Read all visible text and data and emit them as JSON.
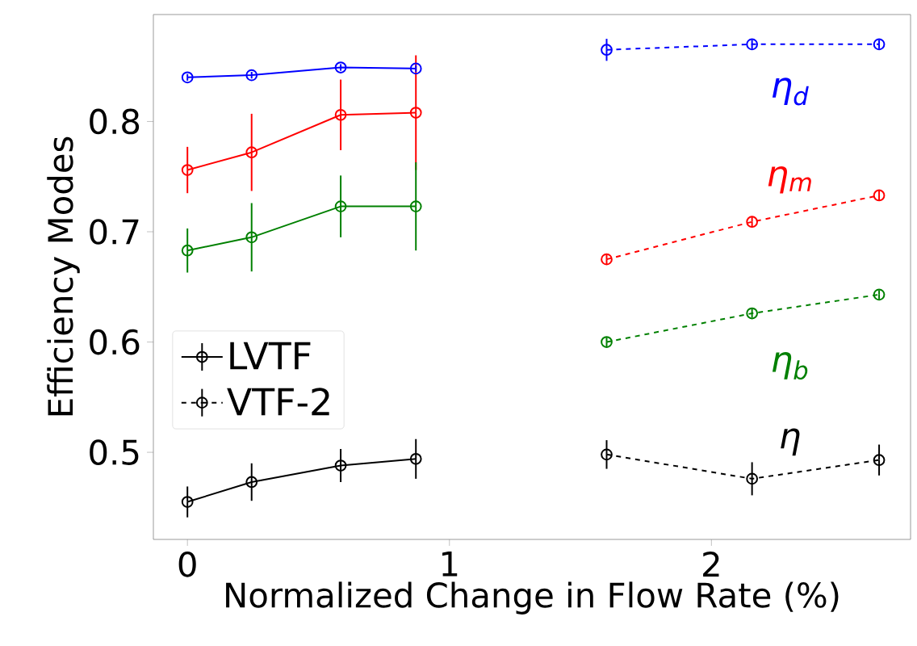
{
  "chart_data": {
    "type": "line",
    "xlabel": "Normalized Change in Flow Rate (%)",
    "ylabel": "Efficiency Modes",
    "xlim": [
      -0.13,
      2.76
    ],
    "ylim": [
      0.421,
      0.897
    ],
    "xticks": [
      0,
      1,
      2
    ],
    "yticks": [
      0.5,
      0.6,
      0.7,
      0.8
    ],
    "marker": "circle",
    "legend": "left",
    "grid": false,
    "series": [
      {
        "name": "LVTF",
        "color": "#000000",
        "line_style": "solid",
        "x": [
          0,
          0.245,
          0.585,
          0.872
        ],
        "values": [
          0.455,
          0.473,
          0.488,
          0.494
        ],
        "errors": [
          0.014,
          0.017,
          0.015,
          0.018
        ]
      },
      {
        "color": "#ff0000",
        "line_style": "solid",
        "x": [
          0,
          0.245,
          0.585,
          0.872
        ],
        "values": [
          0.756,
          0.772,
          0.806,
          0.808
        ],
        "errors": [
          0.021,
          0.035,
          0.032,
          0.052
        ]
      },
      {
        "color": "#008000",
        "line_style": "solid",
        "x": [
          0,
          0.245,
          0.585,
          0.872
        ],
        "values": [
          0.683,
          0.695,
          0.723,
          0.723
        ],
        "errors": [
          0.02,
          0.031,
          0.028,
          0.04
        ]
      },
      {
        "color": "#0000ff",
        "line_style": "solid",
        "x": [
          0,
          0.245,
          0.585,
          0.872
        ],
        "values": [
          0.84,
          0.842,
          0.849,
          0.848
        ],
        "errors": [
          0.003,
          0.003,
          0.003,
          0.003
        ]
      },
      {
        "name": "VTF-2",
        "color": "#000000",
        "line_style": "dashed",
        "x": [
          1.6,
          2.155,
          2.64
        ],
        "values": [
          0.498,
          0.476,
          0.493
        ],
        "errors": [
          0.013,
          0.015,
          0.014
        ]
      },
      {
        "color": "#ff0000",
        "line_style": "dashed",
        "x": [
          1.6,
          2.155,
          2.64
        ],
        "values": [
          0.675,
          0.709,
          0.733
        ],
        "errors": [
          0.005,
          0.005,
          0.005
        ]
      },
      {
        "color": "#008000",
        "line_style": "dashed",
        "x": [
          1.6,
          2.155,
          2.64
        ],
        "values": [
          0.6,
          0.626,
          0.643
        ],
        "errors": [
          0.004,
          0.004,
          0.004
        ]
      },
      {
        "color": "#0000ff",
        "line_style": "dashed",
        "x": [
          1.6,
          2.155,
          2.64
        ],
        "values": [
          0.865,
          0.87,
          0.87
        ],
        "errors": [
          0.01,
          0.004,
          0.004
        ]
      }
    ],
    "annotations": [
      "η$_{d}$",
      "η$_{m}$",
      "η$_{b}$",
      "η"
    ]
  }
}
